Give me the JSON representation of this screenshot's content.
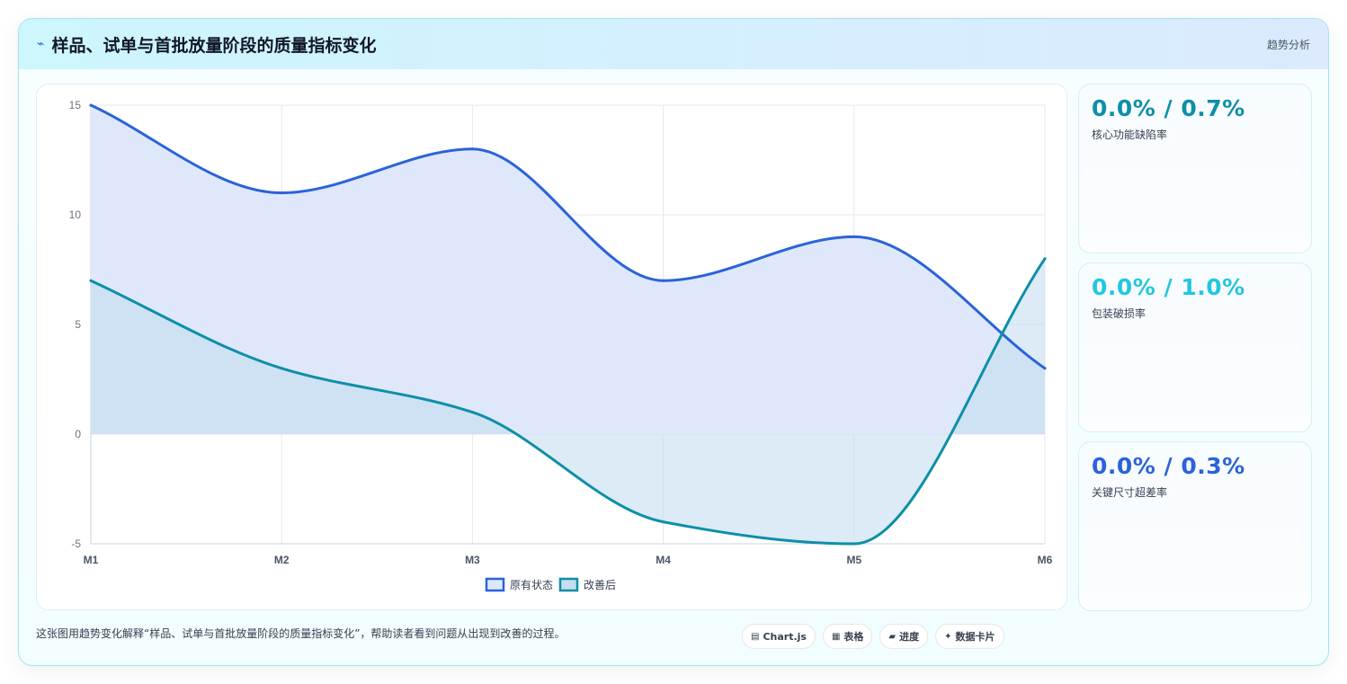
{
  "header": {
    "icon": "line-chart-icon",
    "title": "样品、试单与首批放量阶段的质量指标变化",
    "tag": "趋势分析"
  },
  "chart_data": {
    "type": "area",
    "categories": [
      "M1",
      "M2",
      "M3",
      "M4",
      "M5",
      "M6"
    ],
    "ylim": [
      -5,
      15
    ],
    "yticks": [
      -5,
      0,
      5,
      10,
      15
    ],
    "grid": true,
    "legend": "bottom",
    "series": [
      {
        "name": "原有状态",
        "values": [
          15,
          11,
          13,
          7,
          9,
          3
        ],
        "color": "#2b63d9",
        "fill": "#dfe8fa"
      },
      {
        "name": "改善后",
        "values": [
          7,
          3,
          1,
          -4,
          -5,
          8
        ],
        "color": "#0e8fa8",
        "fill": "#c5def0"
      }
    ]
  },
  "kpis": [
    {
      "value": "0.0% / 0.7%",
      "label": "核心功能缺陷率",
      "color": "#0e8fa8"
    },
    {
      "value": "0.0% / 1.0%",
      "label": "包装破损率",
      "color": "#22c7de"
    },
    {
      "value": "0.0% / 0.3%",
      "label": "关键尺寸超差率",
      "color": "#2b63d9"
    }
  ],
  "footer": {
    "text": "这张图用趋势变化解释“样品、试单与首批放量阶段的质量指标变化”，帮助读者看到问题从出现到改善的过程。",
    "chips": [
      {
        "icon": "chart-icon",
        "label": "Chart.js"
      },
      {
        "icon": "table-icon",
        "label": "表格"
      },
      {
        "icon": "progress-icon",
        "label": "进度"
      },
      {
        "icon": "sparkle-icon",
        "label": "数据卡片"
      }
    ]
  }
}
